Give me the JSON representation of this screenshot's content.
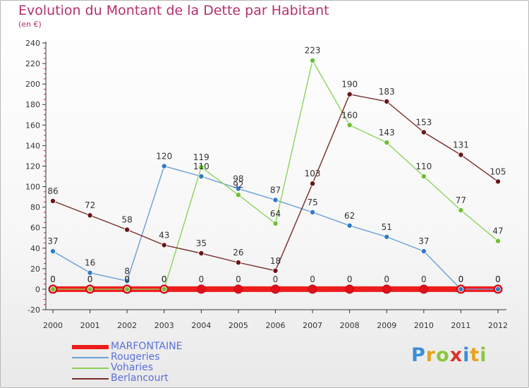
{
  "title": "Evolution du Montant de la Dette par Habitant",
  "subtitle": "(en €)",
  "logo": {
    "letters": [
      "P",
      "r",
      "o",
      "x",
      "i",
      "t",
      "i"
    ],
    "colors": [
      "#3b8fd6",
      "#e8a21c",
      "#8cc63e",
      "#d9342b",
      "#3b8fd6",
      "#e8a21c",
      "#8cc63e"
    ]
  },
  "chart_data": {
    "type": "line",
    "categories": [
      "2000",
      "2001",
      "2002",
      "2003",
      "2004",
      "2005",
      "2006",
      "2007",
      "2008",
      "2009",
      "2010",
      "2011",
      "2012"
    ],
    "ylim": [
      -20,
      240
    ],
    "yticks": [
      -20,
      0,
      20,
      40,
      60,
      80,
      100,
      120,
      140,
      160,
      180,
      200,
      220,
      240
    ],
    "grid": false,
    "legend_position": "bottom-left",
    "series": [
      {
        "name": "MARFONTAINE",
        "color": "#ee1c1c",
        "marker_color": "#e0101a",
        "values": [
          0,
          0,
          0,
          0,
          0,
          0,
          0,
          0,
          0,
          0,
          0,
          0,
          0
        ],
        "labels": [
          "0",
          "0",
          "0",
          "0",
          "0",
          "0",
          "0",
          "0",
          "0",
          "0",
          "0",
          "0",
          "0"
        ]
      },
      {
        "name": "Rougeries",
        "color": "#6a9ed6",
        "marker_color": "#2e7bc8",
        "values": [
          37,
          16,
          8,
          120,
          110,
          98,
          87,
          75,
          62,
          51,
          37,
          0,
          0
        ],
        "labels": [
          "37",
          "16",
          "8",
          "120",
          "110",
          "98",
          "87",
          "75",
          "62",
          "51",
          "37",
          "0",
          "0"
        ]
      },
      {
        "name": "Voharies",
        "color": "#8ad45a",
        "marker_color": "#6ec02e",
        "values": [
          0,
          0,
          0,
          0,
          119,
          92,
          64,
          223,
          160,
          143,
          110,
          77,
          47
        ],
        "labels": [
          "0",
          "0",
          "0",
          "0",
          "119",
          "92",
          "64",
          "223",
          "160",
          "143",
          "110",
          "77",
          "47"
        ]
      },
      {
        "name": "Berlancourt",
        "color": "#7a2a2a",
        "marker_color": "#6a1515",
        "values": [
          86,
          72,
          58,
          43,
          35,
          26,
          18,
          103,
          190,
          183,
          153,
          131,
          105
        ],
        "labels": [
          "86",
          "72",
          "58",
          "43",
          "35",
          "26",
          "18",
          "103",
          "190",
          "183",
          "153",
          "131",
          "105"
        ]
      }
    ]
  }
}
